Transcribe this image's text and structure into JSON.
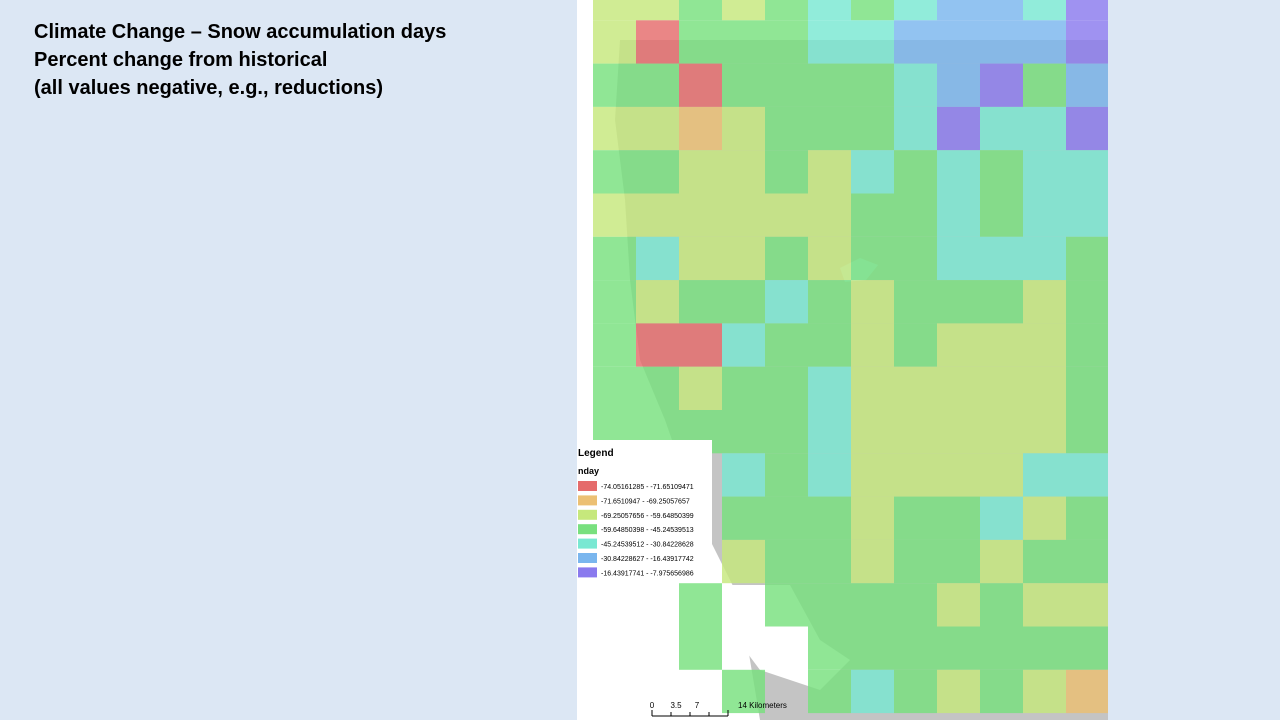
{
  "title_lines": [
    "Climate Change – Snow accumulation days",
    "Percent change from historical",
    "(all values negative, e.g., reductions)"
  ],
  "legend": {
    "title": "Legend",
    "field": "nday",
    "items": [
      {
        "label": "-74.05161285 - -71.65109471",
        "color": "#e56b6b"
      },
      {
        "label": "-71.6510947 - -69.25057657",
        "color": "#ecc073"
      },
      {
        "label": "-69.25057656 - -59.64850399",
        "color": "#c6e87c"
      },
      {
        "label": "-59.64850398 - -45.24539513",
        "color": "#78e07e"
      },
      {
        "label": "-45.24539512 - -30.84228628",
        "color": "#79e8d2"
      },
      {
        "label": "-30.84228627 - -16.43917742",
        "color": "#7ab6ee"
      },
      {
        "label": "-16.43917741 - -7.975656986",
        "color": "#8a7aee"
      }
    ]
  },
  "scale_bar": {
    "labels": [
      "0",
      "3.5",
      "7",
      "14 Kilometers"
    ]
  }
}
